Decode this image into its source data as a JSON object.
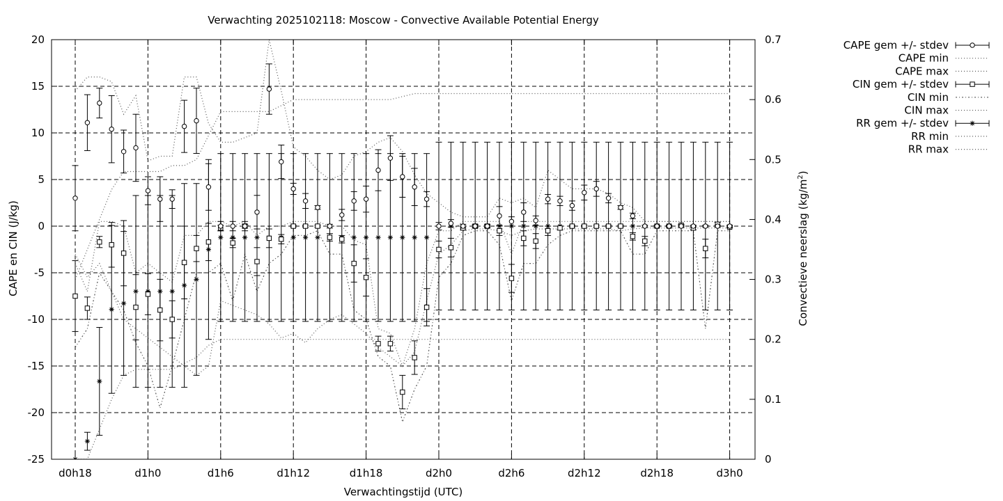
{
  "chart_data": {
    "type": "line",
    "title": "Verwachting 2025102118: Moscow - Convective Available Potential Energy",
    "xlabel": "Verwachtingstijd (UTC)",
    "ylabel": "CAPE en CIN (J/kg)",
    "y2label_main": "Convectieve neerslag (kg/m",
    "y2label_sup": "2",
    "y2label_end": ")",
    "ylim": [
      -25,
      20
    ],
    "y2lim": [
      0,
      0.7
    ],
    "yticks": [
      "20",
      "15",
      "10",
      "5",
      "0",
      "-5",
      "-10",
      "-15",
      "-20",
      "-25"
    ],
    "y2ticks": [
      "0.7",
      "0.6",
      "0.5",
      "0.4",
      "0.3",
      "0.2",
      "0.1",
      "0"
    ],
    "xticks": [
      "d0h18",
      "d1h0",
      "d1h6",
      "d1h12",
      "d1h18",
      "d2h0",
      "d2h6",
      "d2h12",
      "d2h18",
      "d3h0"
    ],
    "x_hours_range": [
      18,
      72
    ],
    "grid": true,
    "legend_position": "right, outside plot",
    "legend": [
      {
        "label": "CAPE gem +/- stdev",
        "style": "errorbar-circle"
      },
      {
        "label": "CAPE min",
        "style": "dotted"
      },
      {
        "label": "CAPE max",
        "style": "dotted"
      },
      {
        "label": "CIN gem +/- stdev",
        "style": "errorbar-square"
      },
      {
        "label": "CIN min",
        "style": "dashdot"
      },
      {
        "label": "CIN max",
        "style": "dotted"
      },
      {
        "label": "RR gem +/- stdev",
        "style": "errorbar-star"
      },
      {
        "label": "RR min",
        "style": "dotted"
      },
      {
        "label": "RR max",
        "style": "dotted"
      }
    ],
    "x": [
      18,
      19,
      20,
      21,
      22,
      23,
      24,
      25,
      26,
      27,
      28,
      29,
      30,
      31,
      32,
      33,
      34,
      35,
      36,
      37,
      38,
      39,
      40,
      41,
      42,
      43,
      44,
      45,
      46,
      47,
      48,
      49,
      50,
      51,
      52,
      53,
      54,
      55,
      56,
      57,
      58,
      59,
      60,
      61,
      62,
      63,
      64,
      65,
      66,
      67,
      68,
      69,
      70,
      71,
      72
    ],
    "series": [
      {
        "name": "CAPE gem +/- stdev",
        "values": [
          3.0,
          11.1,
          13.2,
          10.4,
          8.0,
          8.4,
          3.8,
          2.9,
          2.9,
          10.7,
          11.3,
          4.2,
          0.0,
          0.0,
          0.0,
          1.5,
          14.7,
          6.9,
          4.0,
          2.7,
          2.0,
          0.0,
          1.2,
          2.7,
          2.9,
          6.0,
          7.3,
          5.3,
          4.2,
          2.9,
          0.0,
          0.3,
          0.0,
          0.0,
          0.0,
          1.1,
          0.5,
          1.5,
          0.6,
          2.9,
          2.7,
          2.2,
          3.6,
          4.0,
          3.0,
          2.0,
          1.1,
          0.0,
          0.0,
          0.0,
          0.0,
          0.0,
          0.0,
          0.0,
          0.0
        ],
        "stdev": [
          3.5,
          3.0,
          1.6,
          3.6,
          2.3,
          3.6,
          1.5,
          2.4,
          1.0,
          2.8,
          3.5,
          2.5,
          0.5,
          0.5,
          0.5,
          1.8,
          2.7,
          1.8,
          0.6,
          0.8,
          0.2,
          0.2,
          0.6,
          1.0,
          1.4,
          2.2,
          2.4,
          2.2,
          2.0,
          0.8,
          0.4,
          0.4,
          0.2,
          0.2,
          0.2,
          1.0,
          0.5,
          1.0,
          0.5,
          0.5,
          0.5,
          0.5,
          0.8,
          0.8,
          0.5,
          0.2,
          0.3,
          0.1,
          0.1,
          0.1,
          0.1,
          0.1,
          0.1,
          0.1,
          0.1
        ]
      },
      {
        "name": "CAPE min",
        "values": [
          -3.0,
          -5.5,
          -4.0,
          -7.0,
          -10.0,
          -11.0,
          -12.0,
          -13.0,
          -14.0,
          -15.0,
          -16.0,
          -15.0,
          -8.0,
          -8.5,
          -9.0,
          -9.5,
          -10.5,
          -12.0,
          -11.5,
          -12.5,
          -11.0,
          -10.0,
          -9.5,
          -10.5,
          -11.5,
          -13.0,
          -14.0,
          -15.0,
          -13.5,
          -8.0,
          -3.0,
          -2.0,
          -0.5,
          -0.3,
          -0.3,
          -0.5,
          -1.0,
          -0.5,
          -0.3,
          -0.3,
          -0.3,
          -0.3,
          -0.3,
          -0.3,
          -0.3,
          -0.5,
          -0.3,
          -0.2,
          -0.2,
          -0.2,
          -0.2,
          -0.2,
          -0.2,
          -0.2,
          -0.2
        ]
      },
      {
        "name": "CAPE max",
        "values": [
          14.5,
          16.0,
          16.0,
          15.5,
          12.0,
          14.0,
          7.0,
          7.5,
          7.5,
          16.0,
          16.0,
          11.0,
          9.0,
          9.0,
          9.5,
          10.0,
          20.0,
          14.5,
          8.5,
          7.5,
          6.0,
          5.0,
          5.5,
          7.5,
          8.0,
          9.0,
          9.5,
          8.0,
          5.5,
          3.5,
          2.5,
          1.5,
          1.0,
          1.0,
          1.0,
          3.0,
          2.5,
          3.0,
          2.0,
          6.0,
          5.0,
          4.0,
          4.0,
          4.0,
          3.5,
          2.5,
          2.0,
          0.5,
          0.5,
          0.5,
          0.5,
          0.5,
          0.5,
          0.5,
          0.5
        ]
      },
      {
        "name": "CIN gem +/- stdev",
        "values": [
          -7.5,
          -8.8,
          -1.7,
          -2.0,
          -2.9,
          -8.7,
          -7.3,
          -9.0,
          -10.0,
          -3.9,
          -2.4,
          -1.7,
          -0.2,
          -1.8,
          0.0,
          -3.8,
          -1.3,
          -1.4,
          0.0,
          0.0,
          0.0,
          -1.2,
          -1.4,
          -4.0,
          -5.5,
          -12.6,
          -12.6,
          -17.8,
          -14.1,
          -8.7,
          -2.5,
          -2.3,
          -0.2,
          0.0,
          0.0,
          -0.5,
          -5.6,
          -1.3,
          -1.6,
          -0.5,
          -0.2,
          0.0,
          0.0,
          0.0,
          0.0,
          0.0,
          -1.1,
          -1.6,
          0.0,
          0.0,
          0.1,
          -0.2,
          -2.4,
          0.2,
          -0.1
        ],
        "stdev": [
          3.8,
          1.2,
          0.6,
          2.4,
          3.5,
          3.5,
          2.2,
          3.3,
          2.0,
          3.9,
          1.4,
          2.0,
          0.3,
          0.5,
          0.2,
          1.5,
          1.0,
          0.5,
          0.1,
          0.1,
          0.1,
          0.4,
          0.4,
          2.0,
          2.0,
          0.8,
          0.8,
          1.8,
          1.8,
          2.0,
          0.9,
          1.0,
          0.2,
          0.1,
          0.1,
          0.5,
          1.5,
          0.8,
          0.8,
          0.5,
          0.2,
          0.1,
          0.1,
          0.1,
          0.1,
          0.1,
          0.4,
          0.5,
          0.1,
          0.1,
          0.1,
          0.2,
          1.0,
          0.2,
          0.1
        ]
      },
      {
        "name": "CIN min",
        "values": [
          -13.0,
          -11.0,
          -5.0,
          -7.0,
          -9.0,
          -12.5,
          -15.0,
          -19.5,
          -15.0,
          -10.0,
          -5.0,
          -5.0,
          -4.0,
          -8.0,
          -3.0,
          -7.0,
          -4.0,
          -3.0,
          -1.0,
          -1.0,
          -0.5,
          -3.0,
          -3.0,
          -9.0,
          -10.0,
          -14.0,
          -15.0,
          -21.0,
          -17.5,
          -15.0,
          -5.5,
          -4.0,
          -1.0,
          -0.5,
          -0.5,
          -2.0,
          -8.0,
          -4.0,
          -4.0,
          -2.0,
          -1.0,
          -0.5,
          -0.5,
          -0.5,
          -0.5,
          -0.5,
          -3.0,
          -3.0,
          -0.5,
          -0.5,
          -0.5,
          -0.5,
          -11.0,
          -0.5,
          -0.5
        ]
      },
      {
        "name": "CIN max",
        "values": [
          -4.0,
          -7.0,
          0.5,
          0.5,
          0.0,
          -5.0,
          -4.0,
          -5.0,
          -6.0,
          -1.0,
          -1.0,
          0.5,
          0.5,
          0.0,
          0.5,
          -1.0,
          0.0,
          0.0,
          0.5,
          0.5,
          0.5,
          0.0,
          0.0,
          -1.5,
          -2.0,
          -11.0,
          -11.5,
          -15.0,
          -11.0,
          -4.0,
          -0.5,
          -0.5,
          0.5,
          0.5,
          0.5,
          0.5,
          -3.0,
          0.5,
          0.5,
          0.5,
          0.5,
          0.5,
          0.5,
          0.5,
          0.5,
          0.5,
          0.5,
          0.5,
          0.5,
          0.5,
          0.5,
          0.5,
          0.5,
          0.5,
          0.5
        ]
      },
      {
        "name": "RR gem +/- stdev",
        "axis": "y2",
        "values": [
          0.0,
          0.03,
          0.13,
          0.25,
          0.26,
          0.28,
          0.28,
          0.28,
          0.28,
          0.29,
          0.3,
          0.35,
          0.37,
          0.37,
          0.37,
          0.37,
          0.37,
          0.37,
          0.37,
          0.37,
          0.37,
          0.37,
          0.37,
          0.37,
          0.37,
          0.37,
          0.37,
          0.37,
          0.37,
          0.37,
          0.389,
          0.389,
          0.389,
          0.389,
          0.389,
          0.389,
          0.389,
          0.389,
          0.389,
          0.389,
          0.389,
          0.389,
          0.389,
          0.389,
          0.389,
          0.389,
          0.389,
          0.389,
          0.389,
          0.389,
          0.389,
          0.389,
          0.389,
          0.389,
          0.389
        ],
        "stdev": [
          0.0,
          0.015,
          0.09,
          0.14,
          0.12,
          0.16,
          0.16,
          0.16,
          0.16,
          0.17,
          0.16,
          0.15,
          0.14,
          0.14,
          0.14,
          0.14,
          0.14,
          0.14,
          0.14,
          0.14,
          0.14,
          0.14,
          0.14,
          0.14,
          0.14,
          0.14,
          0.14,
          0.14,
          0.14,
          0.14,
          0.14,
          0.14,
          0.14,
          0.14,
          0.14,
          0.14,
          0.14,
          0.14,
          0.14,
          0.14,
          0.14,
          0.14,
          0.14,
          0.14,
          0.14,
          0.14,
          0.14,
          0.14,
          0.14,
          0.14,
          0.14,
          0.14,
          0.14,
          0.14,
          0.14
        ]
      },
      {
        "name": "RR min",
        "axis": "y2",
        "values": [
          0.0,
          0.0,
          0.05,
          0.1,
          0.14,
          0.15,
          0.15,
          0.15,
          0.15,
          0.16,
          0.17,
          0.19,
          0.2,
          0.2,
          0.2,
          0.2,
          0.2,
          0.2,
          0.2,
          0.2,
          0.2,
          0.2,
          0.2,
          0.2,
          0.2,
          0.2,
          0.2,
          0.2,
          0.2,
          0.2,
          0.2,
          0.2,
          0.2,
          0.2,
          0.2,
          0.2,
          0.2,
          0.2,
          0.2,
          0.2,
          0.2,
          0.2,
          0.2,
          0.2,
          0.2,
          0.2,
          0.2,
          0.2,
          0.2,
          0.2,
          0.2,
          0.2,
          0.2,
          0.2,
          0.2
        ]
      },
      {
        "name": "RR max",
        "axis": "y2",
        "values": [
          0.3,
          0.35,
          0.4,
          0.45,
          0.48,
          0.48,
          0.48,
          0.48,
          0.49,
          0.49,
          0.5,
          0.54,
          0.58,
          0.58,
          0.58,
          0.58,
          0.58,
          0.59,
          0.6,
          0.6,
          0.6,
          0.6,
          0.6,
          0.6,
          0.6,
          0.6,
          0.6,
          0.605,
          0.61,
          0.61,
          0.61,
          0.61,
          0.61,
          0.61,
          0.61,
          0.61,
          0.61,
          0.61,
          0.61,
          0.61,
          0.61,
          0.61,
          0.61,
          0.61,
          0.61,
          0.61,
          0.61,
          0.61,
          0.61,
          0.61,
          0.61,
          0.61,
          0.61,
          0.61,
          0.61
        ]
      }
    ]
  }
}
